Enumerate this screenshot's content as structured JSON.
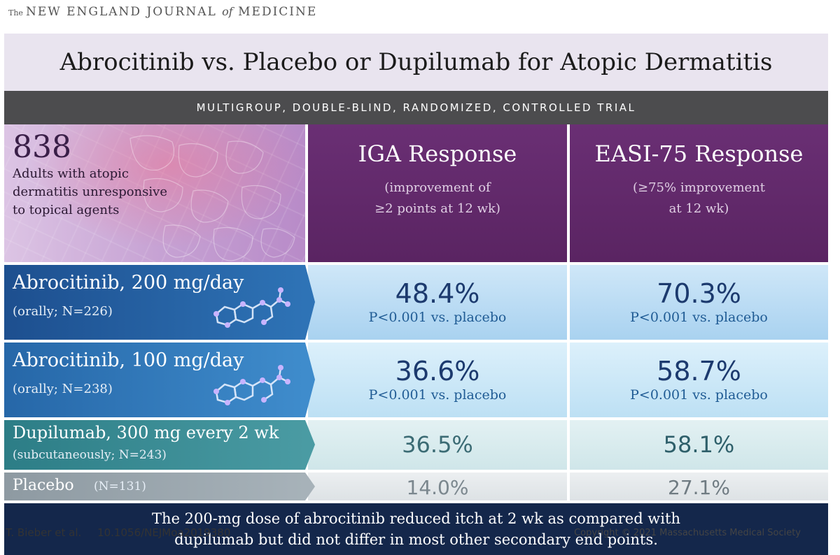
{
  "masthead": {
    "the": "The",
    "part1": "NEW ENGLAND JOURNAL",
    "of": "of",
    "part2": "MEDICINE"
  },
  "title": "Abrocitinib vs. Placebo or Dupilumab for Atopic Dermatitis",
  "subtitle": "MULTIGROUP, DOUBLE-BLIND, RANDOMIZED, CONTROLLED TRIAL",
  "population": {
    "number": "838",
    "lines": [
      "Adults with atopic",
      "dermatitis unresponsive",
      "to topical agents"
    ]
  },
  "columns": [
    {
      "title": "IGA Response",
      "sub_lines": [
        "(improvement of",
        "≥2 points at 12 wk)"
      ]
    },
    {
      "title": "EASI-75 Response",
      "sub_lines": [
        "(≥75% improvement",
        "at 12 wk)"
      ]
    }
  ],
  "rows": [
    {
      "name": "Abrocitinib, 200 mg/day",
      "detail": "(orally; N=226)",
      "iga": "48.4%",
      "iga_p": "P<0.001 vs. placebo",
      "easi": "70.3%",
      "easi_p": "P<0.001 vs. placebo"
    },
    {
      "name": "Abrocitinib, 100 mg/day",
      "detail": "(orally; N=238)",
      "iga": "36.6%",
      "iga_p": "P<0.001 vs. placebo",
      "easi": "58.7%",
      "easi_p": "P<0.001 vs. placebo"
    },
    {
      "name": "Dupilumab, 300 mg every 2 wk",
      "detail": "(subcutaneously; N=243)",
      "iga": "36.5%",
      "easi": "58.1%"
    },
    {
      "name": "Placebo",
      "detail": "(N=131)",
      "iga": "14.0%",
      "easi": "27.1%"
    }
  ],
  "conclusion_lines": [
    "The 200-mg dose of abrocitinib reduced itch at 2 wk as compared with",
    "dupilumab but did not differ in most other secondary end points."
  ],
  "citation": {
    "authors": "T. Bieber et al.",
    "doi": "10.1056/NEJMoa2019380"
  },
  "copyright": "Copyright © 2021 Massachusetts Medical Society",
  "colors": {
    "title_bg": "#e9e4ef",
    "subtitle_bg": "#4c4c4e",
    "column_header_bg": "#5a2462",
    "footer_bg": "#14274b"
  },
  "icons": [
    "molecule-structure-icon"
  ]
}
